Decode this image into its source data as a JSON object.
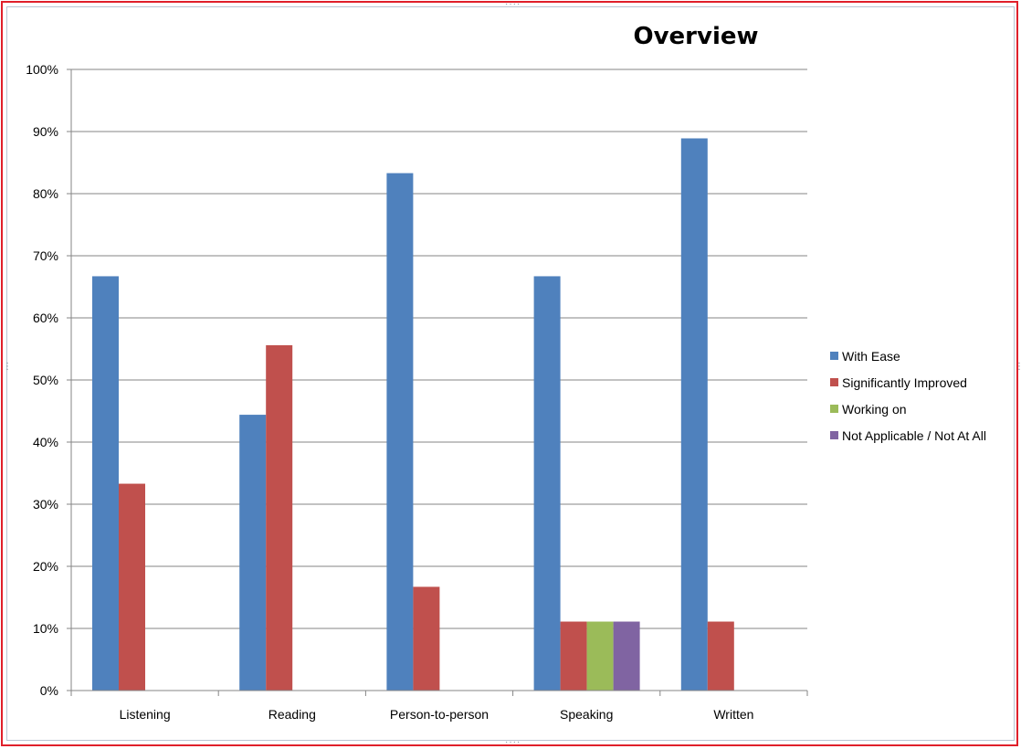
{
  "chart_data": {
    "type": "bar",
    "title": "Overview",
    "xlabel": "",
    "ylabel": "",
    "ylim": [
      0,
      100
    ],
    "y_ticks": [
      "0%",
      "10%",
      "20%",
      "30%",
      "40%",
      "50%",
      "60%",
      "70%",
      "80%",
      "90%",
      "100%"
    ],
    "grid": true,
    "legend_position": "right",
    "categories": [
      "Listening",
      "Reading",
      "Person-to-person",
      "Speaking",
      "Written"
    ],
    "series": [
      {
        "name": "With Ease",
        "color": "#4f81bd",
        "values": [
          66.7,
          44.4,
          83.3,
          66.7,
          88.9
        ]
      },
      {
        "name": "Significantly Improved",
        "color": "#c0504d",
        "values": [
          33.3,
          55.6,
          16.7,
          11.1,
          11.1
        ]
      },
      {
        "name": "Working on",
        "color": "#9bbb59",
        "values": [
          0,
          0,
          0,
          11.1,
          0
        ]
      },
      {
        "name": "Not Applicable / Not At All",
        "color": "#8064a2",
        "values": [
          0,
          0,
          0,
          11.1,
          0
        ]
      }
    ]
  }
}
